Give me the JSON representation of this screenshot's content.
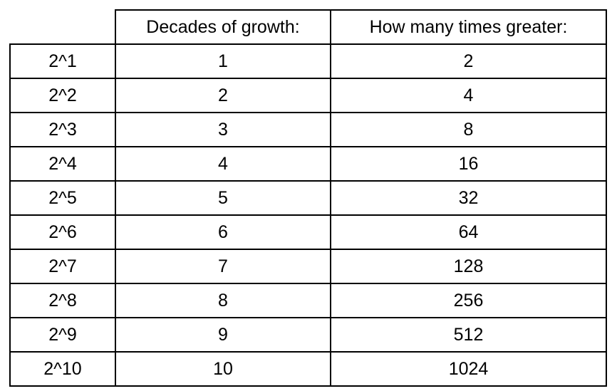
{
  "table": {
    "header": [
      "Decades of growth:",
      "How many times greater:"
    ],
    "rows": [
      [
        "2^1",
        1,
        2
      ],
      [
        "2^2",
        2,
        4
      ],
      [
        "2^3",
        3,
        8
      ],
      [
        "2^4",
        4,
        16
      ],
      [
        "2^5",
        5,
        32
      ],
      [
        "2^6",
        6,
        64
      ],
      [
        "2^7",
        7,
        128
      ],
      [
        "2^8",
        8,
        256
      ],
      [
        "2^9",
        9,
        512
      ],
      [
        "2^10",
        10,
        1024
      ]
    ]
  }
}
